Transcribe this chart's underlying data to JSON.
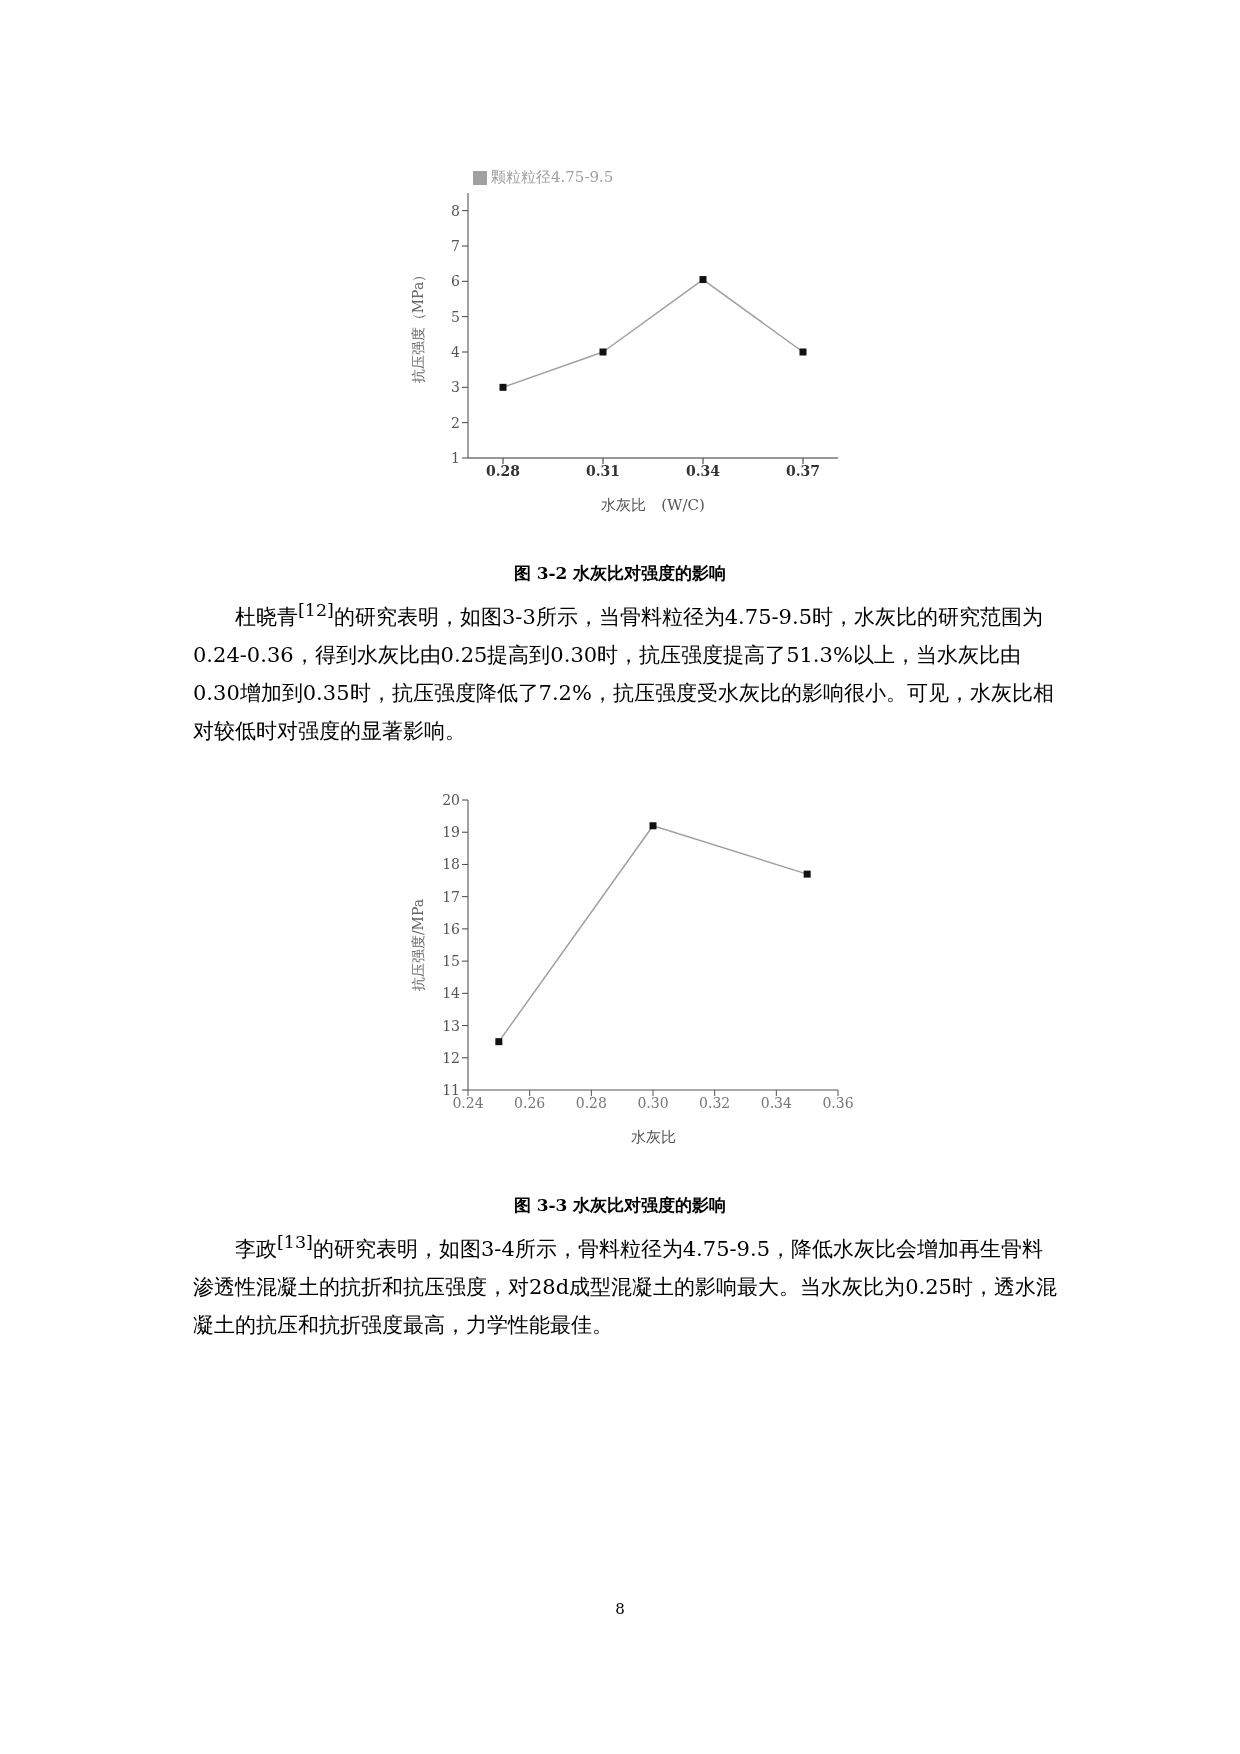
{
  "chart_data": [
    {
      "type": "line",
      "title": "图 3-2 水灰比对强度的影响",
      "xlabel": "水灰比　(W/C)",
      "ylabel": "抗压强度（MPa）",
      "categories": [
        "0.28",
        "0.31",
        "0.34",
        "0.37"
      ],
      "series": [
        {
          "name": "颗粒粒径4.75-9.5",
          "color": "#a0a0a0",
          "values": [
            3,
            4,
            6.05,
            4
          ]
        }
      ],
      "ylim": [
        1,
        8.5
      ],
      "yticks": [
        1,
        2,
        3,
        4,
        5,
        6,
        7,
        8
      ],
      "legend": "top left",
      "marker": "square",
      "annotations": [
        "杜晓青$^{[12]}$的研究表明，如图3-3所示，当骨料粒径为4.75-9.5时，水灰比的研究范围为0.24-0.36，得到水灰比由0.25提高到0.30时，抗压强度提高了51.3%以上，当水灰比由0.30增加到0.35时，抗压强度降低了7.2%，抗压强度受水灰比的影响很小。可见，水灰比相对较低时对强度的显著影响。"
      ]
    },
    {
      "type": "line",
      "title": "图 3-3 水灰比对强度的影响",
      "xlabel": "水灰比",
      "ylabel": "抗压强度/MPa",
      "x": [
        0.25,
        0.3,
        0.35
      ],
      "series": [
        {
          "color": "#a0a0a0",
          "values": [
            12.5,
            19.2,
            17.7
          ]
        }
      ],
      "xlim": [
        0.24,
        0.36
      ],
      "xticks": [
        0.24,
        0.26,
        0.28,
        {
          "value": 0.3,
          "label": "0.30"
        },
        0.32,
        0.34,
        0.36
      ],
      "ylim": [
        11,
        20
      ],
      "yticks": [
        11,
        12,
        13,
        14,
        15,
        16,
        17,
        18,
        19,
        20
      ],
      "marker": "square",
      "annotations": [
        "李政$^{[13]}$的研究表明，如图3-4所示，骨料粒径为4.75-9.5，降低水灰比会增加再生骨料渗透性混凝土的抗折和抗压强度，对28d成型混凝土的影响最大。当水灰比为0.25时，透水混凝土的抗压和抗折强度最高，力学性能最佳。",
        "8"
      ]
    }
  ]
}
